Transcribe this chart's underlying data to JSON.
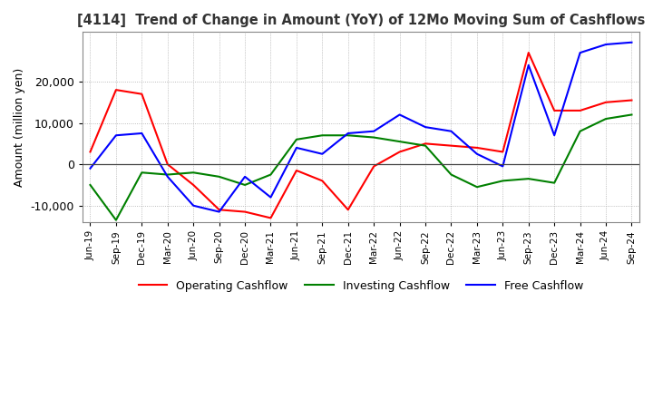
{
  "title": "[4114]  Trend of Change in Amount (YoY) of 12Mo Moving Sum of Cashflows",
  "ylabel": "Amount (million yen)",
  "ylim": [
    -14000,
    32000
  ],
  "yticks": [
    -10000,
    0,
    10000,
    20000
  ],
  "background_color": "#ffffff",
  "grid_color": "#aaaaaa",
  "x_labels": [
    "Jun-19",
    "Sep-19",
    "Dec-19",
    "Mar-20",
    "Jun-20",
    "Sep-20",
    "Dec-20",
    "Mar-21",
    "Jun-21",
    "Sep-21",
    "Dec-21",
    "Mar-22",
    "Jun-22",
    "Sep-22",
    "Dec-22",
    "Mar-23",
    "Jun-23",
    "Sep-23",
    "Dec-23",
    "Mar-24",
    "Jun-24",
    "Sep-24"
  ],
  "operating": [
    3000,
    18000,
    17000,
    0,
    -5000,
    -11000,
    -11500,
    -13000,
    -1500,
    -4000,
    -11000,
    -500,
    3000,
    5000,
    4500,
    4000,
    3000,
    27000,
    13000,
    13000,
    15000,
    15500
  ],
  "investing": [
    -5000,
    -13500,
    -2000,
    -2500,
    -2000,
    -3000,
    -5000,
    -2500,
    6000,
    7000,
    7000,
    6500,
    5500,
    4500,
    -2500,
    -5500,
    -4000,
    -3500,
    -4500,
    8000,
    11000,
    12000
  ],
  "free": [
    -1000,
    7000,
    7500,
    -3000,
    -10000,
    -11500,
    -3000,
    -8000,
    4000,
    2500,
    7500,
    8000,
    12000,
    9000,
    8000,
    2500,
    -500,
    24000,
    7000,
    27000,
    29000,
    29500
  ],
  "op_color": "#ff0000",
  "inv_color": "#008000",
  "free_color": "#0000ff",
  "line_width": 1.5
}
